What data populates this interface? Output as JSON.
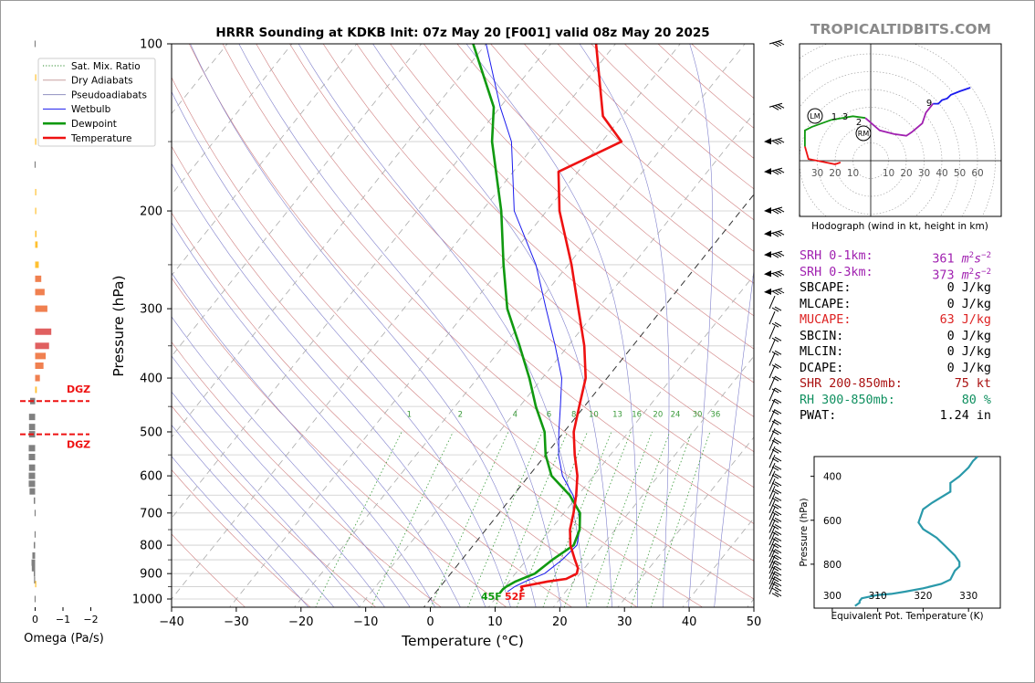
{
  "title": "HRRR Sounding at KDKB Init: 07z May 20 [F001] valid 08z May 20 2025",
  "brand": "TROPICALTIDBITS.COM",
  "skewt": {
    "xlabel": "Temperature (°C)",
    "ylabel": "Pressure (hPa)",
    "x_ticks": [
      "−40",
      "−30",
      "−20",
      "−10",
      "0",
      "10",
      "20",
      "30",
      "40",
      "50"
    ],
    "y_ticks": [
      "100",
      "200",
      "300",
      "400",
      "500",
      "600",
      "700",
      "800",
      "900",
      "1000"
    ],
    "mixing_ratio_labels": [
      "1",
      "2",
      "4",
      "6",
      "8",
      "10",
      "13",
      "16",
      "20",
      "24",
      "30",
      "36"
    ],
    "surface_dewpoint_label": "45F",
    "surface_temp_label": "52F",
    "colors": {
      "temperature": "#ee1111",
      "dewpoint": "#109910",
      "wetbulb": "#1a1aee",
      "dry_adiabat": "#d08080",
      "moist_adiabat": "#8080cc",
      "mixing_ratio": "#3a9a3a"
    }
  },
  "legend": [
    {
      "label": "Sat. Mix. Ratio",
      "color": "#2a8a2a",
      "style": "dotted"
    },
    {
      "label": "Dry Adiabats",
      "color": "#c8a0a0",
      "style": "solid"
    },
    {
      "label": "Pseudoadiabats",
      "color": "#9090c0",
      "style": "solid"
    },
    {
      "label": "Wetbulb",
      "color": "#1a1aee",
      "style": "solid"
    },
    {
      "label": "Dewpoint",
      "color": "#109910",
      "style": "thick"
    },
    {
      "label": "Temperature",
      "color": "#ee1111",
      "style": "thick"
    }
  ],
  "omega": {
    "xlabel": "Omega (Pa/s)",
    "x_ticks": [
      "0",
      "−1",
      "−2"
    ],
    "dgz_label": "DGZ"
  },
  "hodograph": {
    "caption": "Hodograph (wind in kt, height in km)",
    "left_ticks": [
      "30",
      "20",
      "10"
    ],
    "right_ticks": [
      "10",
      "20",
      "30",
      "40",
      "50",
      "60"
    ],
    "height_labels": [
      "1",
      "3",
      "2",
      "9"
    ],
    "markers": [
      "LM",
      "RM"
    ]
  },
  "params": [
    {
      "label": "SRH 0-1km:",
      "value": "361",
      "unit": "m",
      "sup": "2",
      "unit2": "s",
      "sup2": "−2",
      "color": "#a020b0"
    },
    {
      "label": "SRH 0-3km:",
      "value": "373",
      "unit": "m",
      "sup": "2",
      "unit2": "s",
      "sup2": "−2",
      "color": "#a020b0"
    },
    {
      "label": "SBCAPE:",
      "value": "0 J/kg",
      "color": "#000000"
    },
    {
      "label": "MLCAPE:",
      "value": "0 J/kg",
      "color": "#000000"
    },
    {
      "label": "MUCAPE:",
      "value": "63 J/kg",
      "color": "#dd2222"
    },
    {
      "label": "SBCIN:",
      "value": "0 J/kg",
      "color": "#000000"
    },
    {
      "label": "MLCIN:",
      "value": "0 J/kg",
      "color": "#000000"
    },
    {
      "label": "DCAPE:",
      "value": "0 J/kg",
      "color": "#000000"
    },
    {
      "label": "SHR 200-850mb:",
      "value": "75 kt",
      "color": "#aa1111"
    },
    {
      "label": "RH 300-850mb:",
      "value": "80 %",
      "color": "#109060"
    },
    {
      "label": "PWAT:",
      "value": "1.24 in",
      "color": "#000000"
    }
  ],
  "theta_e": {
    "xlabel": "Equivalent Pot. Temperature (K)",
    "ylabel": "Pressure (hPa)",
    "x_ticks": [
      "300",
      "310",
      "320",
      "330"
    ],
    "y_ticks": [
      "400",
      "600",
      "800"
    ],
    "color": "#2a99aa"
  },
  "chart_data": [
    {
      "type": "line",
      "title": "HRRR Sounding at KDKB Init: 07z May 20 [F001] valid 08z May 20 2025",
      "xlabel": "Temperature (°C)",
      "ylabel": "Pressure (hPa)",
      "xlim": [
        -40,
        50
      ],
      "ylim": [
        1050,
        100
      ],
      "y_scale": "log",
      "skew": "skew-T log-P",
      "legend_position": "top-left",
      "series": [
        {
          "name": "Temperature",
          "pressure": [
            970,
            960,
            950,
            930,
            920,
            900,
            880,
            850,
            800,
            750,
            700,
            650,
            600,
            550,
            500,
            450,
            400,
            350,
            300,
            250,
            200,
            170,
            150,
            135,
            100
          ],
          "values": [
            13,
            13,
            12.5,
            16,
            18.5,
            19.5,
            19,
            17.5,
            15,
            13,
            11.5,
            9.7,
            7.5,
            4.5,
            1.5,
            -0.8,
            -3.3,
            -7.5,
            -13,
            -19.5,
            -28,
            -33,
            -27,
            -33,
            -43
          ]
        },
        {
          "name": "Dewpoint",
          "pressure": [
            975,
            960,
            950,
            930,
            900,
            850,
            800,
            750,
            700,
            650,
            600,
            550,
            500,
            450,
            400,
            350,
            300,
            250,
            200,
            150,
            130,
            100
          ],
          "values": [
            10,
            10,
            10.2,
            11,
            13,
            14,
            15.5,
            14.5,
            12.5,
            8.7,
            3.5,
            0,
            -3,
            -7.5,
            -12,
            -17.5,
            -24,
            -30,
            -37,
            -47,
            -51,
            -62
          ]
        },
        {
          "name": "Wetbulb",
          "pressure": [
            970,
            950,
            930,
            900,
            850,
            800,
            750,
            700,
            650,
            600,
            550,
            500,
            450,
            400,
            350,
            300,
            250,
            200,
            150,
            130,
            100
          ],
          "values": [
            11,
            11.5,
            12.5,
            14.5,
            15.5,
            16,
            14.5,
            12.3,
            9.2,
            5.2,
            2,
            -0.8,
            -3.7,
            -7,
            -12,
            -18,
            -25,
            -35,
            -44,
            -50,
            -60
          ]
        }
      ]
    },
    {
      "type": "bar",
      "title": "",
      "xlabel": "Omega (Pa/s)",
      "ylabel": "",
      "xlim": [
        0.3,
        -2
      ],
      "dgz_pressure": [
        440,
        505
      ],
      "series": [
        {
          "name": "Omega",
          "pressure": [
            1000,
            940,
            925,
            900,
            880,
            860,
            835,
            800,
            765,
            700,
            665,
            640,
            620,
            600,
            580,
            555,
            535,
            505,
            490,
            470,
            440,
            420,
            400,
            380,
            365,
            350,
            330,
            300,
            280,
            265,
            250,
            230,
            220,
            200,
            185,
            165,
            150,
            115,
            100
          ],
          "values": [
            0.02,
            -0.03,
            0.04,
            0.05,
            0.12,
            0.13,
            0.1,
            0.05,
            0.02,
            0.02,
            0.05,
            0.2,
            0.23,
            0.23,
            0.22,
            0.23,
            0.23,
            0.22,
            0.22,
            0.22,
            0.18,
            -0.06,
            -0.17,
            -0.3,
            -0.38,
            -0.5,
            -0.58,
            -0.44,
            -0.34,
            -0.22,
            -0.13,
            -0.09,
            -0.05,
            -0.03,
            -0.02,
            0.02,
            -0.02,
            -0.01,
            0.02
          ]
        }
      ]
    },
    {
      "type": "line",
      "title": "Hodograph (wind in kt, height in km)",
      "xlabel": "",
      "ylabel": "",
      "rings_kt": [
        10,
        20,
        30,
        40,
        50,
        60,
        70
      ],
      "series": [
        {
          "name": "Hodograph",
          "u": [
            -17,
            -20,
            -35,
            -37,
            -37,
            -33,
            -22,
            -10,
            -3,
            5,
            13,
            20,
            23,
            29,
            31,
            35,
            38,
            40,
            43,
            45,
            50,
            56
          ],
          "v": [
            -1,
            -2,
            1,
            8,
            17,
            19,
            23,
            25,
            24,
            17,
            15,
            14,
            16,
            21,
            27,
            32,
            32,
            34,
            35,
            37,
            39,
            41
          ]
        }
      ]
    },
    {
      "type": "line",
      "title": "",
      "xlabel": "Equivalent Pot. Temperature (K)",
      "ylabel": "Pressure (hPa)",
      "xlim": [
        296,
        337
      ],
      "ylim": [
        1000,
        310
      ],
      "series": [
        {
          "name": "Theta-e",
          "pressure": [
            990,
            975,
            968,
            955,
            940,
            935,
            925,
            910,
            890,
            870,
            830,
            810,
            790,
            760,
            720,
            680,
            640,
            610,
            580,
            550,
            520,
            470,
            430,
            400,
            360,
            330,
            310
          ],
          "values": [
            305,
            306,
            306,
            306.5,
            310,
            313,
            316,
            320,
            324,
            326,
            327,
            328,
            328,
            327,
            325,
            323,
            320,
            319,
            319.5,
            320,
            322,
            326,
            326,
            328,
            330,
            331,
            332
          ]
        }
      ]
    }
  ]
}
